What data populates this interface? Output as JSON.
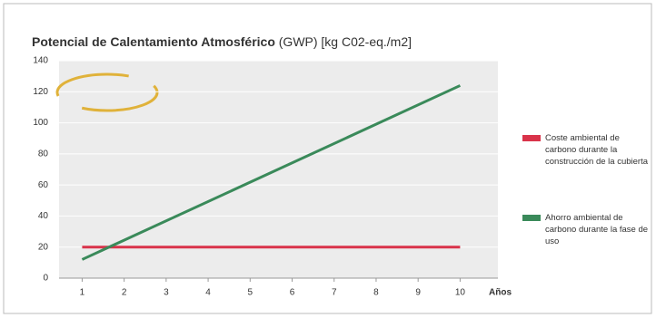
{
  "chart_data": {
    "type": "line",
    "title": "Potencial de Calentamiento Atmosférico",
    "subtitle": "(GWP) [kg C02-eq./m2]",
    "x_label": "Años",
    "x": [
      1,
      10
    ],
    "series": [
      {
        "name": "Coste ambiental de carbono durante la construcción de la cubierta",
        "color": "#d9334a",
        "values": [
          20,
          20
        ]
      },
      {
        "name": "Ahorro ambiental de carbono durante la fase de uso",
        "color": "#3a8a5a",
        "values": [
          12,
          124
        ]
      }
    ],
    "xlim": [
      0.45,
      10.9
    ],
    "xticks": [
      1,
      2,
      3,
      4,
      5,
      6,
      7,
      8,
      9,
      10
    ],
    "ylim": [
      0,
      140
    ],
    "yticks": [
      0,
      20,
      40,
      60,
      80,
      100,
      120,
      140
    ],
    "grid": true,
    "legend": "right"
  }
}
